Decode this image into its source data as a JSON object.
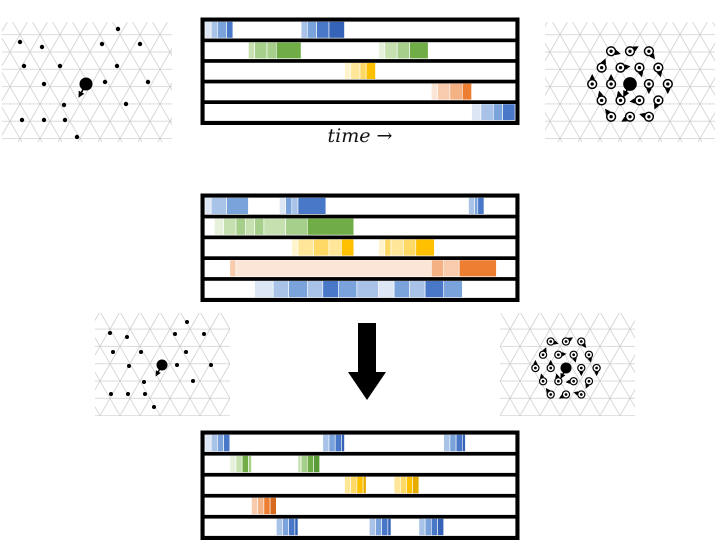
{
  "caption": "time →",
  "colors": {
    "blue": [
      "#dce6f5",
      "#a9c3e8",
      "#7aa3dc",
      "#4a78c8",
      "#3463b8"
    ],
    "green": [
      "#e6f1dc",
      "#c6e0b0",
      "#a7cf8c",
      "#70ad47",
      "#5b9a38"
    ],
    "yellow": [
      "#fff4cc",
      "#ffe699",
      "#ffd966",
      "#ffc000",
      "#e6ac00"
    ],
    "orange": [
      "#fbe5d6",
      "#f8cbad",
      "#f4b183",
      "#ed7d31",
      "#d86a1f"
    ]
  },
  "panels": [
    {
      "name": "top-timeline",
      "rows": [
        [
          [
            "blue",
            0.0,
            0.02,
            0
          ],
          [
            "blue",
            0.02,
            0.04,
            1
          ],
          [
            "blue",
            0.04,
            0.07,
            2
          ],
          [
            "blue",
            0.07,
            0.09,
            3
          ],
          [
            "blue",
            0.31,
            0.33,
            1
          ],
          [
            "blue",
            0.33,
            0.36,
            2
          ],
          [
            "blue",
            0.36,
            0.4,
            3
          ],
          [
            "blue",
            0.4,
            0.45,
            4
          ]
        ],
        [
          [
            "green",
            0.14,
            0.16,
            1
          ],
          [
            "green",
            0.16,
            0.2,
            2
          ],
          [
            "green",
            0.2,
            0.23,
            2
          ],
          [
            "green",
            0.23,
            0.31,
            3
          ],
          [
            "green",
            0.56,
            0.58,
            0
          ],
          [
            "green",
            0.58,
            0.62,
            1
          ],
          [
            "green",
            0.62,
            0.66,
            2
          ],
          [
            "green",
            0.66,
            0.72,
            3
          ]
        ],
        [
          [
            "yellow",
            0.45,
            0.47,
            0
          ],
          [
            "yellow",
            0.47,
            0.5,
            1
          ],
          [
            "yellow",
            0.5,
            0.52,
            2
          ],
          [
            "yellow",
            0.52,
            0.55,
            3
          ]
        ],
        [
          [
            "orange",
            0.73,
            0.75,
            0
          ],
          [
            "orange",
            0.75,
            0.79,
            1
          ],
          [
            "orange",
            0.79,
            0.83,
            2
          ],
          [
            "orange",
            0.83,
            0.86,
            3
          ]
        ],
        [
          [
            "blue",
            0.86,
            0.89,
            0
          ],
          [
            "blue",
            0.89,
            0.93,
            1
          ],
          [
            "blue",
            0.93,
            0.96,
            2
          ],
          [
            "blue",
            0.96,
            1.0,
            3
          ]
        ]
      ]
    },
    {
      "name": "middle-timeline",
      "rows": [
        [
          [
            "blue",
            0.0,
            0.02,
            0
          ],
          [
            "blue",
            0.02,
            0.07,
            1
          ],
          [
            "blue",
            0.07,
            0.14,
            2
          ],
          [
            "blue",
            0.24,
            0.26,
            0
          ],
          [
            "blue",
            0.26,
            0.28,
            2
          ],
          [
            "blue",
            0.28,
            0.3,
            1
          ],
          [
            "blue",
            0.3,
            0.39,
            3
          ],
          [
            "blue",
            0.85,
            0.87,
            1
          ],
          [
            "blue",
            0.87,
            0.88,
            2
          ],
          [
            "blue",
            0.88,
            0.9,
            3
          ]
        ],
        [
          [
            "green",
            0.03,
            0.06,
            0
          ],
          [
            "green",
            0.06,
            0.1,
            1
          ],
          [
            "green",
            0.1,
            0.13,
            2
          ],
          [
            "green",
            0.13,
            0.16,
            1
          ],
          [
            "green",
            0.16,
            0.19,
            2
          ],
          [
            "green",
            0.19,
            0.26,
            1
          ],
          [
            "green",
            0.26,
            0.33,
            2
          ],
          [
            "green",
            0.33,
            0.48,
            3
          ]
        ],
        [
          [
            "yellow",
            0.28,
            0.3,
            0
          ],
          [
            "yellow",
            0.3,
            0.35,
            1
          ],
          [
            "yellow",
            0.35,
            0.4,
            2
          ],
          [
            "yellow",
            0.4,
            0.44,
            1
          ],
          [
            "yellow",
            0.44,
            0.48,
            3
          ],
          [
            "yellow",
            0.56,
            0.58,
            0
          ],
          [
            "yellow",
            0.58,
            0.6,
            2
          ],
          [
            "yellow",
            0.6,
            0.64,
            1
          ],
          [
            "yellow",
            0.64,
            0.68,
            2
          ],
          [
            "yellow",
            0.68,
            0.74,
            3
          ]
        ],
        [
          [
            "orange",
            0.08,
            0.1,
            1
          ],
          [
            "orange",
            0.1,
            0.73,
            0
          ],
          [
            "orange",
            0.73,
            0.77,
            2
          ],
          [
            "orange",
            0.77,
            0.82,
            1
          ],
          [
            "orange",
            0.82,
            0.94,
            3
          ]
        ],
        [
          [
            "blue",
            0.16,
            0.22,
            0
          ],
          [
            "blue",
            0.22,
            0.27,
            1
          ],
          [
            "blue",
            0.27,
            0.33,
            2
          ],
          [
            "blue",
            0.33,
            0.38,
            1
          ],
          [
            "blue",
            0.38,
            0.43,
            3
          ],
          [
            "blue",
            0.43,
            0.49,
            2
          ],
          [
            "blue",
            0.49,
            0.56,
            1
          ],
          [
            "blue",
            0.56,
            0.61,
            0
          ],
          [
            "blue",
            0.61,
            0.66,
            2
          ],
          [
            "blue",
            0.66,
            0.71,
            1
          ],
          [
            "blue",
            0.71,
            0.77,
            3
          ],
          [
            "blue",
            0.77,
            0.83,
            2
          ]
        ]
      ]
    },
    {
      "name": "bottom-timeline",
      "rows": [
        [
          [
            "blue",
            0.0,
            0.02,
            0
          ],
          [
            "blue",
            0.02,
            0.04,
            1
          ],
          [
            "blue",
            0.04,
            0.06,
            2
          ],
          [
            "blue",
            0.06,
            0.08,
            3
          ],
          [
            "blue",
            0.38,
            0.4,
            1
          ],
          [
            "blue",
            0.4,
            0.42,
            2
          ],
          [
            "blue",
            0.42,
            0.44,
            3
          ],
          [
            "blue",
            0.44,
            0.45,
            4
          ],
          [
            "blue",
            0.77,
            0.79,
            1
          ],
          [
            "blue",
            0.79,
            0.81,
            2
          ],
          [
            "blue",
            0.81,
            0.83,
            3
          ],
          [
            "blue",
            0.83,
            0.84,
            4
          ]
        ],
        [
          [
            "green",
            0.08,
            0.1,
            0
          ],
          [
            "green",
            0.1,
            0.12,
            1
          ],
          [
            "green",
            0.12,
            0.14,
            3
          ],
          [
            "green",
            0.14,
            0.15,
            2
          ],
          [
            "green",
            0.3,
            0.31,
            1
          ],
          [
            "green",
            0.31,
            0.33,
            2
          ],
          [
            "green",
            0.33,
            0.35,
            3
          ],
          [
            "green",
            0.35,
            0.37,
            4
          ]
        ],
        [
          [
            "yellow",
            0.45,
            0.47,
            1
          ],
          [
            "yellow",
            0.47,
            0.49,
            2
          ],
          [
            "yellow",
            0.49,
            0.51,
            3
          ],
          [
            "yellow",
            0.51,
            0.52,
            4
          ],
          [
            "yellow",
            0.61,
            0.63,
            1
          ],
          [
            "yellow",
            0.63,
            0.65,
            2
          ],
          [
            "yellow",
            0.65,
            0.67,
            3
          ],
          [
            "yellow",
            0.67,
            0.69,
            4
          ]
        ],
        [
          [
            "orange",
            0.15,
            0.17,
            1
          ],
          [
            "orange",
            0.17,
            0.19,
            2
          ],
          [
            "orange",
            0.19,
            0.21,
            3
          ],
          [
            "orange",
            0.21,
            0.23,
            4
          ]
        ],
        [
          [
            "blue",
            0.23,
            0.25,
            1
          ],
          [
            "blue",
            0.25,
            0.27,
            2
          ],
          [
            "blue",
            0.27,
            0.29,
            3
          ],
          [
            "blue",
            0.29,
            0.3,
            4
          ],
          [
            "blue",
            0.53,
            0.55,
            1
          ],
          [
            "blue",
            0.55,
            0.57,
            2
          ],
          [
            "blue",
            0.57,
            0.59,
            3
          ],
          [
            "blue",
            0.59,
            0.6,
            4
          ],
          [
            "blue",
            0.69,
            0.71,
            1
          ],
          [
            "blue",
            0.71,
            0.73,
            2
          ],
          [
            "blue",
            0.73,
            0.75,
            3
          ],
          [
            "blue",
            0.75,
            0.77,
            4
          ]
        ]
      ]
    }
  ],
  "icons": {
    "sparse_pattern": "sparse-dot-pattern-icon",
    "oriented_pattern": "oriented-dot-pattern-icon",
    "arrow": "down-arrow-icon"
  }
}
